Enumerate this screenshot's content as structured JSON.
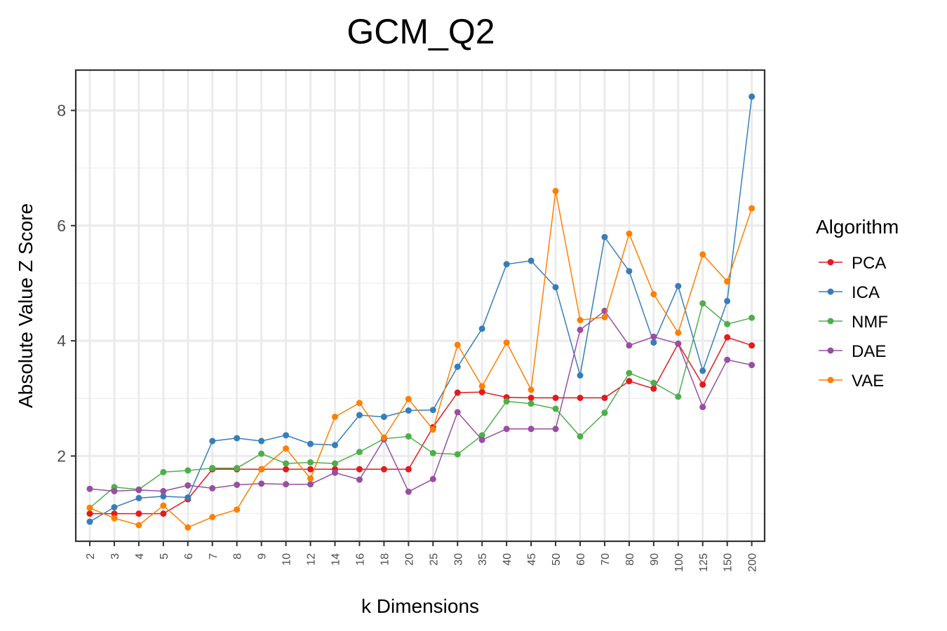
{
  "chart_data": {
    "type": "line",
    "title": "GCM_Q2",
    "xlabel": "k Dimensions",
    "ylabel": "Absolute Value Z Score",
    "categories": [
      "2",
      "3",
      "4",
      "5",
      "6",
      "7",
      "8",
      "9",
      "10",
      "12",
      "14",
      "16",
      "18",
      "20",
      "25",
      "30",
      "35",
      "40",
      "45",
      "50",
      "60",
      "70",
      "80",
      "90",
      "100",
      "125",
      "150",
      "200"
    ],
    "ylim": [
      0.52,
      8.7
    ],
    "yticks": [
      2,
      4,
      6,
      8
    ],
    "grid": true,
    "legend_title": "Algorithm",
    "legend_position": "right",
    "series": [
      {
        "name": "PCA",
        "color": "#e41a1c",
        "values": [
          1.0,
          1.0,
          1.0,
          1.0,
          1.25,
          1.77,
          1.77,
          1.77,
          1.77,
          1.77,
          1.77,
          1.77,
          1.77,
          1.77,
          2.5,
          3.1,
          3.11,
          3.02,
          3.01,
          3.01,
          3.01,
          3.01,
          3.3,
          3.17,
          3.95,
          3.24,
          4.06,
          3.92
        ]
      },
      {
        "name": "ICA",
        "color": "#377eb8",
        "values": [
          0.86,
          1.11,
          1.27,
          1.3,
          1.28,
          2.26,
          2.31,
          2.26,
          2.36,
          2.21,
          2.19,
          2.71,
          2.68,
          2.79,
          2.8,
          3.55,
          4.21,
          5.33,
          5.39,
          4.93,
          3.4,
          5.8,
          5.21,
          3.97,
          4.95,
          3.48,
          4.69,
          8.24
        ]
      },
      {
        "name": "NMF",
        "color": "#4daf4a",
        "values": [
          1.1,
          1.46,
          1.42,
          1.72,
          1.75,
          1.79,
          1.79,
          2.04,
          1.87,
          1.89,
          1.87,
          2.07,
          2.3,
          2.34,
          2.05,
          2.03,
          2.36,
          2.95,
          2.91,
          2.82,
          2.34,
          2.75,
          3.44,
          3.27,
          3.03,
          4.65,
          4.29,
          4.4
        ]
      },
      {
        "name": "DAE",
        "color": "#984ea3",
        "values": [
          1.43,
          1.39,
          1.41,
          1.39,
          1.49,
          1.44,
          1.5,
          1.52,
          1.51,
          1.51,
          1.71,
          1.59,
          2.29,
          1.38,
          1.6,
          2.76,
          2.28,
          2.47,
          2.47,
          2.47,
          4.19,
          4.52,
          3.92,
          4.07,
          3.95,
          2.85,
          3.67,
          3.58
        ]
      },
      {
        "name": "VAE",
        "color": "#ff7f00",
        "values": [
          1.1,
          0.92,
          0.8,
          1.14,
          0.76,
          0.94,
          1.07,
          1.77,
          2.13,
          1.61,
          2.68,
          2.92,
          2.32,
          2.99,
          2.46,
          3.93,
          3.21,
          3.97,
          3.15,
          6.6,
          4.36,
          4.41,
          5.86,
          4.81,
          4.14,
          5.5,
          5.03,
          6.3
        ]
      }
    ]
  }
}
